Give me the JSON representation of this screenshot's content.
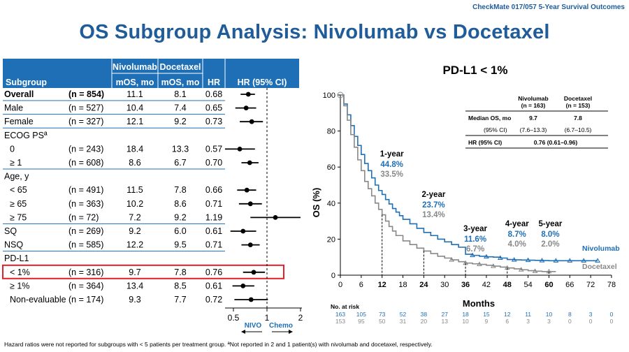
{
  "header": {
    "tag": "CheckMate 017/057 5-Year Survival Outcomes",
    "title": "OS Subgroup Analysis: Nivolumab vs Docetaxel"
  },
  "forest": {
    "columns": {
      "nivo_top": "Nivolumab",
      "doce_top": "Docetaxel",
      "subgroup": "Subgroup",
      "nivo_sub": "mOS, mo",
      "doce_sub": "mOS, mo",
      "hr": "HR",
      "ci": "HR (95% CI)"
    },
    "rows": [
      {
        "label": "Overall",
        "n": "(n = 854)",
        "nivo": "11.1",
        "doce": "8.1",
        "hr": "0.68",
        "hr_val": 0.68,
        "lo": 0.58,
        "hi": 0.78,
        "bold": true
      },
      {
        "label": "Male",
        "n": "(n = 527)",
        "nivo": "10.4",
        "doce": "7.4",
        "hr": "0.65",
        "hr_val": 0.65,
        "lo": 0.52,
        "hi": 0.8
      },
      {
        "label": "Female",
        "n": "(n = 327)",
        "nivo": "12.1",
        "doce": "9.2",
        "hr": "0.73",
        "hr_val": 0.73,
        "lo": 0.57,
        "hi": 0.92
      },
      {
        "label": "ECOG PSª",
        "header": true
      },
      {
        "label": "0",
        "n": "(n = 243)",
        "nivo": "18.4",
        "doce": "13.3",
        "hr": "0.57",
        "hr_val": 0.57,
        "lo": 0.42,
        "hi": 0.78,
        "indent": true
      },
      {
        "label": "≥ 1",
        "n": "(n = 608)",
        "nivo": "8.6",
        "doce": "6.7",
        "hr": "0.70",
        "hr_val": 0.7,
        "lo": 0.59,
        "hi": 0.84,
        "indent": true
      },
      {
        "label": "Age, y",
        "header": true
      },
      {
        "label": "< 65",
        "n": "(n = 491)",
        "nivo": "11.5",
        "doce": "7.8",
        "hr": "0.66",
        "hr_val": 0.66,
        "lo": 0.54,
        "hi": 0.8,
        "indent": true
      },
      {
        "label": "≥ 65",
        "n": "(n = 363)",
        "nivo": "10.2",
        "doce": "8.6",
        "hr": "0.71",
        "hr_val": 0.71,
        "lo": 0.56,
        "hi": 0.9,
        "indent": true
      },
      {
        "label": "≥ 75",
        "n": "(n = 72)",
        "nivo": "7.2",
        "doce": "9.2",
        "hr": "1.19",
        "hr_val": 1.19,
        "lo": 0.71,
        "hi": 2.0,
        "indent": true
      },
      {
        "label": "SQ",
        "n": "(n = 269)",
        "nivo": "9.2",
        "doce": "6.0",
        "hr": "0.61",
        "hr_val": 0.61,
        "lo": 0.47,
        "hi": 0.8
      },
      {
        "label": "NSQ",
        "n": "(n = 585)",
        "nivo": "12.2",
        "doce": "9.5",
        "hr": "0.71",
        "hr_val": 0.71,
        "lo": 0.59,
        "hi": 0.86
      },
      {
        "label": "PD-L1",
        "header": true
      },
      {
        "label": "< 1%",
        "n": "(n = 316)",
        "nivo": "9.7",
        "doce": "7.8",
        "hr": "0.76",
        "hr_val": 0.76,
        "lo": 0.61,
        "hi": 0.96,
        "indent": true,
        "highlight": true
      },
      {
        "label": "≥ 1%",
        "n": "(n = 364)",
        "nivo": "13.4",
        "doce": "8.5",
        "hr": "0.61",
        "hr_val": 0.61,
        "lo": 0.49,
        "hi": 0.77,
        "indent": true
      },
      {
        "label": "Non-evaluable",
        "n": "(n = 174)",
        "nivo": "9.3",
        "doce": "7.7",
        "hr": "0.72",
        "hr_val": 0.72,
        "lo": 0.51,
        "hi": 1.02,
        "indent": true
      }
    ],
    "axis_ticks": [
      "0.5",
      "1",
      "2"
    ],
    "favor_left": "NIVO",
    "favor_right": "Chemo"
  },
  "chart_data": {
    "type": "line",
    "title": "PD-L1 < 1%",
    "xlabel": "Months",
    "ylabel": "OS (%)",
    "xlim": [
      0,
      78
    ],
    "ylim": [
      0,
      100
    ],
    "xticks": [
      0,
      6,
      12,
      18,
      24,
      30,
      36,
      42,
      48,
      54,
      60,
      66,
      72,
      78
    ],
    "yticks": [
      0,
      20,
      40,
      60,
      80,
      100
    ],
    "series": [
      {
        "name": "Nivolumab",
        "color": "#1f6fb6",
        "x": [
          0,
          1,
          2,
          3,
          4,
          5,
          6,
          7,
          8,
          9,
          10,
          11,
          12,
          13,
          14,
          15,
          16,
          17,
          18,
          20,
          22,
          24,
          26,
          28,
          30,
          32,
          34,
          36,
          38,
          40,
          42,
          44,
          46,
          48,
          50,
          52,
          54,
          56,
          58,
          60,
          62,
          64,
          66,
          68,
          70,
          72,
          74
        ],
        "y": [
          100,
          95,
          89,
          83,
          77,
          72,
          67,
          62,
          58,
          54,
          50,
          47,
          44.8,
          42,
          39.5,
          37,
          35,
          33,
          31,
          28.5,
          26,
          23.7,
          22,
          20,
          18.5,
          17,
          15.5,
          11.6,
          11,
          10.5,
          10.2,
          10,
          9.5,
          8.7,
          8.5,
          8.4,
          8.3,
          8.2,
          8.1,
          8.0,
          8.0,
          8.0,
          8.0,
          8.0,
          8.0,
          8.0,
          8.0
        ]
      },
      {
        "name": "Docetaxel",
        "color": "#888888",
        "x": [
          0,
          1,
          2,
          3,
          4,
          5,
          6,
          7,
          8,
          9,
          10,
          11,
          12,
          13,
          14,
          15,
          16,
          18,
          20,
          22,
          24,
          26,
          28,
          30,
          32,
          34,
          36,
          38,
          40,
          42,
          44,
          46,
          48,
          50,
          52,
          54,
          56,
          58,
          60,
          62
        ],
        "y": [
          100,
          94,
          86,
          78,
          71,
          64,
          58,
          52,
          48,
          44,
          40,
          36.5,
          33.5,
          30,
          27,
          24.5,
          22,
          19,
          17,
          15,
          13.4,
          12,
          10.5,
          9.5,
          8.5,
          7.5,
          6.7,
          6.3,
          6,
          5.5,
          5,
          4.5,
          4.0,
          3.5,
          3,
          2.5,
          2.2,
          2.0,
          2.0,
          2.0
        ]
      }
    ],
    "milestones": [
      {
        "label": "1-year",
        "month": 12,
        "nivo": "44.8%",
        "doce": "33.5%"
      },
      {
        "label": "2-year",
        "month": 24,
        "nivo": "23.7%",
        "doce": "13.4%"
      },
      {
        "label": "3-year",
        "month": 36,
        "nivo": "11.6%",
        "doce": "6.7%"
      },
      {
        "label": "4-year",
        "month": 48,
        "nivo": "8.7%",
        "doce": "4.0%"
      },
      {
        "label": "5-year",
        "month": 60,
        "nivo": "8.0%",
        "doce": "2.0%"
      }
    ],
    "summary_table": {
      "nivo_header": "Nivolumab",
      "nivo_n": "(n = 163)",
      "doce_header": "Docetaxel",
      "doce_n": "(n = 153)",
      "median_label": "Median OS, mo",
      "median_nivo": "9.7",
      "median_doce": "7.8",
      "ci_label": "(95% CI)",
      "ci_nivo": "(7.6–13.3)",
      "ci_doce": "(6.7–10.5)",
      "hr_label": "HR (95% CI)",
      "hr_value": "0.76 (0.61–0.96)"
    },
    "at_risk": {
      "label": "No. at risk",
      "nivo": [
        "163",
        "105",
        "73",
        "52",
        "38",
        "27",
        "18",
        "15",
        "12",
        "11",
        "10",
        "8",
        "3",
        "0"
      ],
      "doce": [
        "153",
        "95",
        "50",
        "31",
        "20",
        "13",
        "10",
        "9",
        "6",
        "3",
        "3",
        "0",
        "0",
        "0"
      ]
    }
  },
  "footnote": "Hazard ratios were not reported for subgroups with < 5 patients per treatment group. ªNot reported in 2 and 1 patient(s) with nivolumab and docetaxel, respectively."
}
